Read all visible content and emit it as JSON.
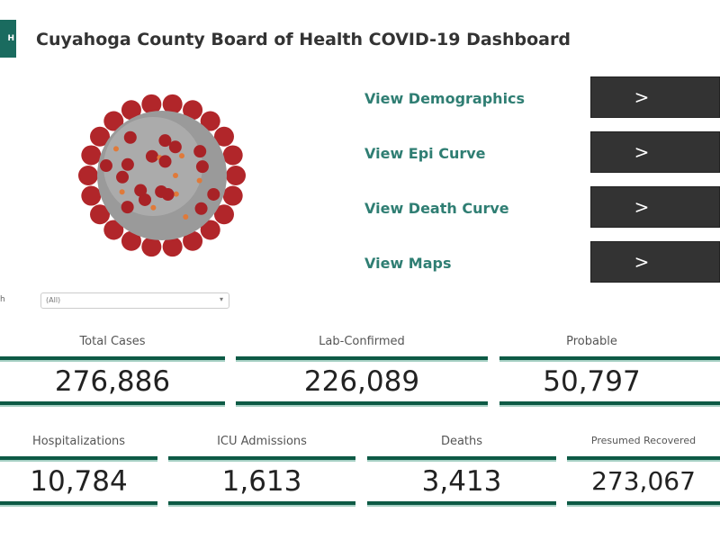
{
  "header": {
    "logo_text": "H",
    "title": "Cuyahoga County Board of Health COVID-19 Dashboard"
  },
  "nav": [
    {
      "label": "View Demographics",
      "button": ">"
    },
    {
      "label": "View Epi Curve",
      "button": ">"
    },
    {
      "label": "View Death Curve",
      "button": ">"
    },
    {
      "label": "View Maps",
      "button": ">"
    }
  ],
  "filter": {
    "label": "h",
    "value": "(All)",
    "arrow": "▾"
  },
  "row1": [
    {
      "label": "Total Cases",
      "value": "276,886"
    },
    {
      "label": "Lab-Confirmed",
      "value": "226,089"
    },
    {
      "label": "Probable",
      "value": "50,797"
    }
  ],
  "row2": [
    {
      "label": "Hospitalizations",
      "value": "10,784"
    },
    {
      "label": "ICU Admissions",
      "value": "1,613"
    },
    {
      "label": "Deaths",
      "value": "3,413"
    },
    {
      "label": "Presumed Recovered",
      "value": "273,067"
    }
  ]
}
